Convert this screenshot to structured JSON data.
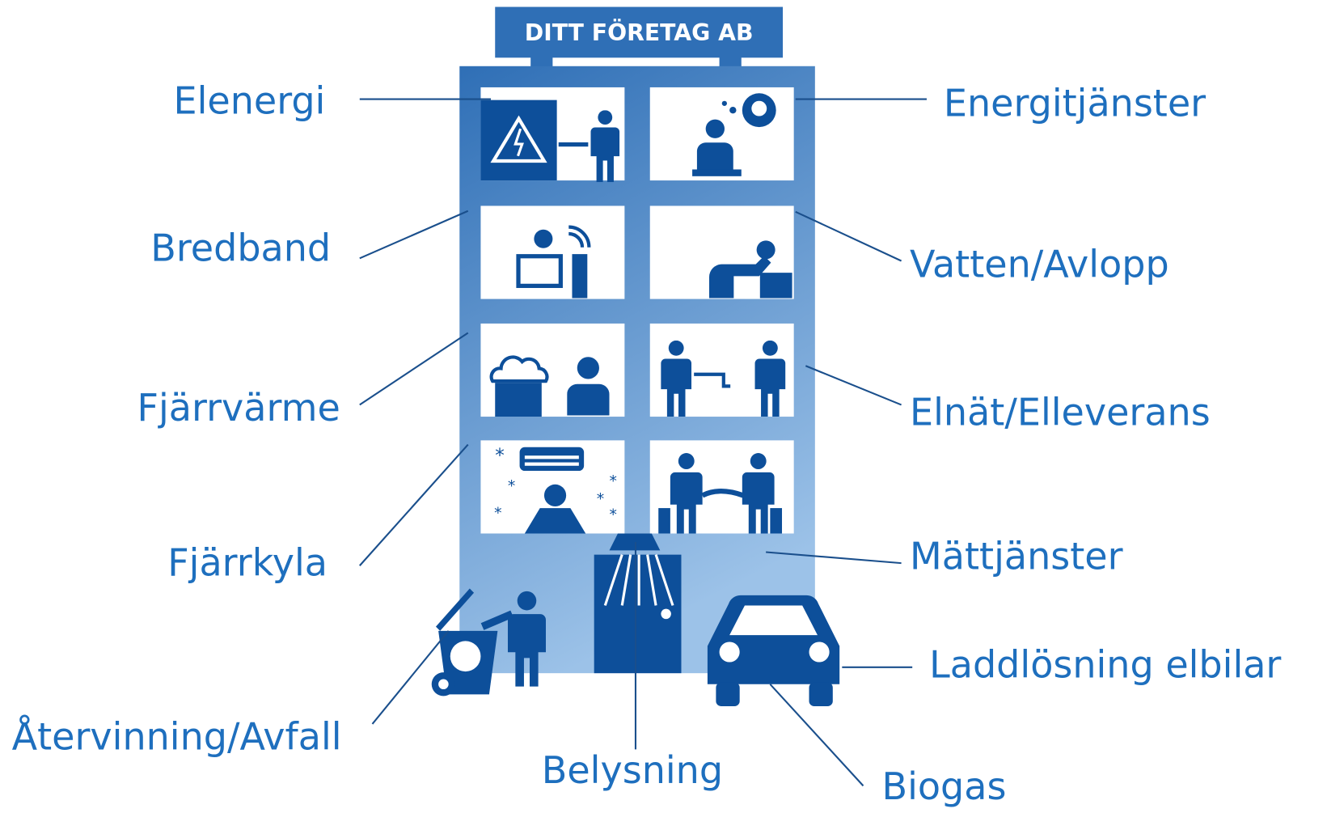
{
  "header": {
    "title": "DITT FÖRETAG AB"
  },
  "labels": [
    {
      "text": "Elenergi"
    },
    {
      "text": "Bredband"
    },
    {
      "text": "Fjärrvärme"
    },
    {
      "text": "Fjärrkyla"
    },
    {
      "text": "Återvinning/Avfall"
    },
    {
      "text": "Belysning"
    },
    {
      "text": "Biogas"
    },
    {
      "text": "Laddlösning elbilar"
    },
    {
      "text": "Mättjänster"
    },
    {
      "text": "Elnät/Elleverans"
    },
    {
      "text": "Vatten/Avlopp"
    },
    {
      "text": "Energitjänster"
    }
  ]
}
